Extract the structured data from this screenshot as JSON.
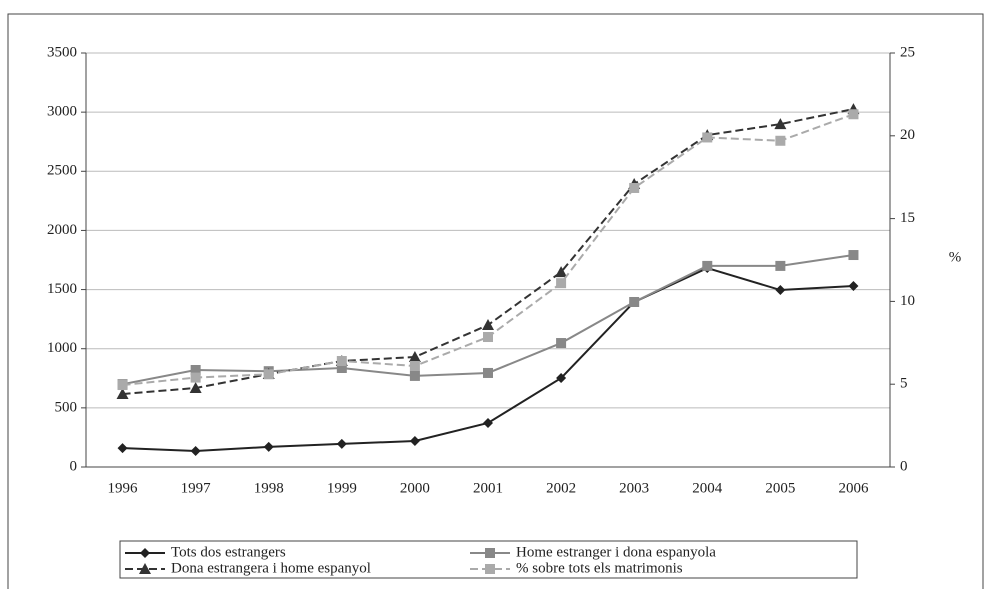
{
  "chart_data": {
    "type": "line",
    "categories": [
      "1996",
      "1997",
      "1998",
      "1999",
      "2000",
      "2001",
      "2002",
      "2003",
      "2004",
      "2005",
      "2006"
    ],
    "series": [
      {
        "name": "Tots dos estrangers",
        "color": "#222222",
        "marker": "diamond",
        "dashed": false,
        "values": [
          160,
          135,
          170,
          195,
          220,
          372,
          752,
          1395,
          1682,
          1496,
          1530
        ]
      },
      {
        "name": "Home estranger i dona espanyola",
        "color": "#888888",
        "marker": "square",
        "dashed": false,
        "values": [
          700,
          820,
          810,
          837,
          770,
          795,
          1048,
          1395,
          1700,
          1700,
          1792
        ]
      },
      {
        "name": "Dona estrangera i home espanyol",
        "color": "#333333",
        "marker": "triangle",
        "dashed": true,
        "values": [
          617,
          668,
          786,
          896,
          930,
          1200,
          1648,
          2392,
          2806,
          2899,
          3026
        ]
      },
      {
        "name": "% sobre tots els matrimonis",
        "color": "#aaaaaa",
        "marker": "square",
        "dashed": true,
        "axis": "y2",
        "values": [
          4.95,
          5.4,
          5.6,
          6.4,
          6.1,
          7.85,
          11.1,
          16.85,
          19.9,
          19.7,
          21.3
        ]
      }
    ],
    "ylim": [
      0,
      3500
    ],
    "yticks": [
      0,
      500,
      1000,
      1500,
      2000,
      2500,
      3000,
      3500
    ],
    "y2lim": [
      0,
      25
    ],
    "y2ticks": [
      0,
      5,
      10,
      15,
      20,
      25
    ],
    "y2label": "%",
    "grid": true
  }
}
